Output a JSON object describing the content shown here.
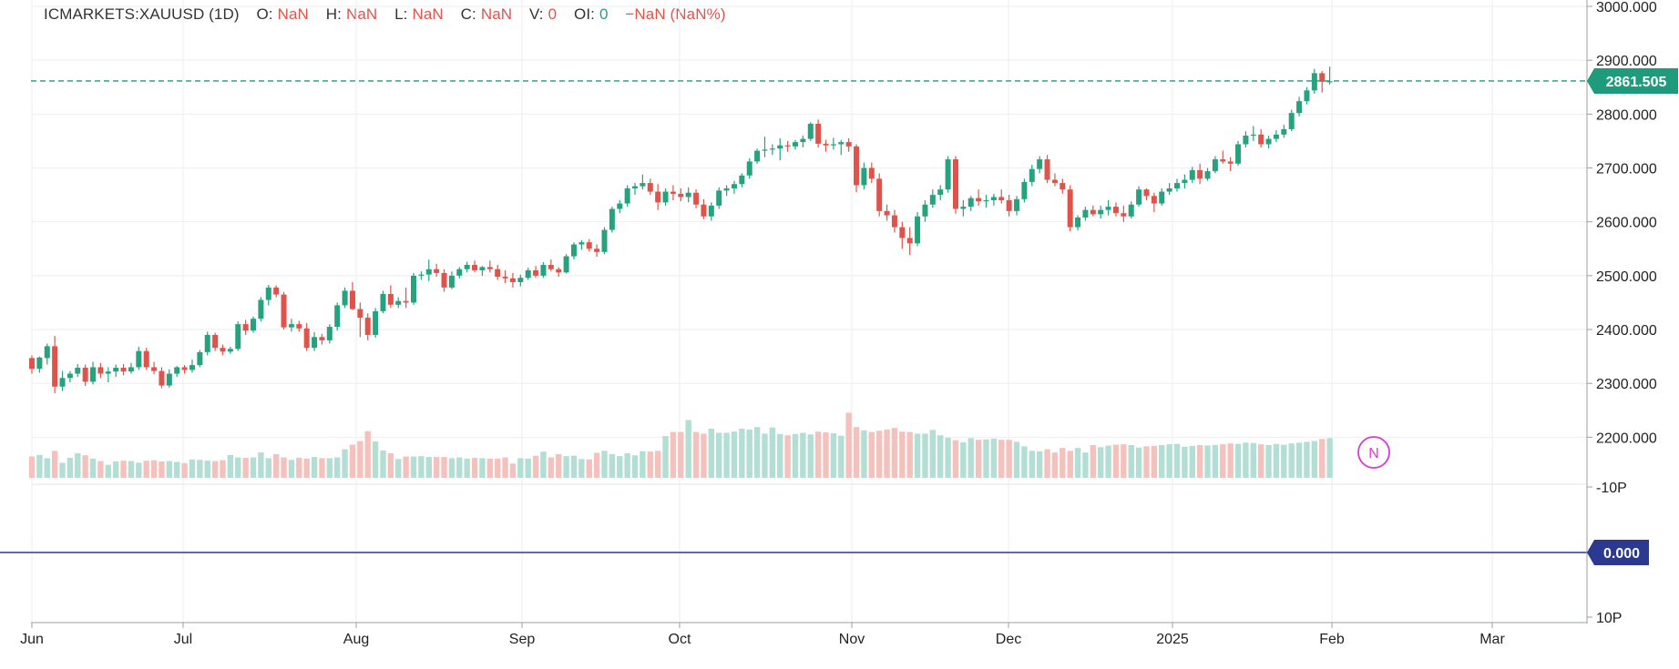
{
  "legend": {
    "symbol": "ICMARKETS:XAUUSD (1D)",
    "o_label": "O:",
    "o_value": "NaN",
    "h_label": "H:",
    "h_value": "NaN",
    "l_label": "L:",
    "l_value": "NaN",
    "c_label": "C:",
    "c_value": "NaN",
    "v_label": "V:",
    "v_value": "0",
    "oi_label": "OI:",
    "oi_value": "0",
    "change": "−NaN  (NaN%)"
  },
  "colors": {
    "up": "#26a27f",
    "down": "#e0534b",
    "up_volume": "#b3ded3",
    "down_volume": "#f5c1bd",
    "grid": "#eeeeee",
    "price_line": "#1e9a7c",
    "indicator_line": "#2b3990",
    "marker": "#d63ad6"
  },
  "chart_data": {
    "type": "candlestick",
    "title": "ICMARKETS:XAUUSD (1D)",
    "price_axis": {
      "ylim": [
        2155,
        3000
      ],
      "ticks": [
        "3000.000",
        "2900.000",
        "2800.000",
        "2700.000",
        "2600.000",
        "2500.000",
        "2400.000",
        "2300.000",
        "2200.000"
      ]
    },
    "indicator_axis": {
      "ticks": [
        "-10P",
        "10P"
      ]
    },
    "last_price": "2861.505",
    "indicator_value": "0.000",
    "marker_label": "N",
    "x_axis_ticks": [
      "Jun",
      "Jul",
      "Aug",
      "Sep",
      "Oct",
      "Nov",
      "Dec",
      "2025",
      "Feb",
      "Mar"
    ],
    "candles_ohlc": [
      [
        2347,
        2352,
        2318,
        2327
      ],
      [
        2327,
        2350,
        2320,
        2348
      ],
      [
        2347,
        2374,
        2335,
        2369
      ],
      [
        2369,
        2388,
        2282,
        2294
      ],
      [
        2294,
        2323,
        2286,
        2310
      ],
      [
        2310,
        2323,
        2302,
        2318
      ],
      [
        2318,
        2336,
        2312,
        2329
      ],
      [
        2329,
        2335,
        2295,
        2303
      ],
      [
        2303,
        2340,
        2298,
        2330
      ],
      [
        2330,
        2338,
        2310,
        2318
      ],
      [
        2318,
        2330,
        2302,
        2322
      ],
      [
        2322,
        2335,
        2312,
        2329
      ],
      [
        2329,
        2336,
        2315,
        2322
      ],
      [
        2322,
        2338,
        2318,
        2330
      ],
      [
        2330,
        2368,
        2325,
        2360
      ],
      [
        2360,
        2366,
        2325,
        2330
      ],
      [
        2330,
        2340,
        2317,
        2323
      ],
      [
        2323,
        2330,
        2291,
        2296
      ],
      [
        2296,
        2326,
        2292,
        2318
      ],
      [
        2318,
        2332,
        2312,
        2330
      ],
      [
        2330,
        2334,
        2318,
        2325
      ],
      [
        2325,
        2344,
        2320,
        2334
      ],
      [
        2334,
        2362,
        2330,
        2358
      ],
      [
        2358,
        2396,
        2352,
        2390
      ],
      [
        2390,
        2394,
        2360,
        2366
      ],
      [
        2366,
        2372,
        2352,
        2359
      ],
      [
        2359,
        2368,
        2355,
        2364
      ],
      [
        2364,
        2415,
        2360,
        2410
      ],
      [
        2410,
        2418,
        2390,
        2398
      ],
      [
        2398,
        2424,
        2394,
        2420
      ],
      [
        2420,
        2460,
        2415,
        2455
      ],
      [
        2455,
        2483,
        2445,
        2478
      ],
      [
        2478,
        2482,
        2460,
        2465
      ],
      [
        2465,
        2470,
        2400,
        2404
      ],
      [
        2404,
        2420,
        2396,
        2410
      ],
      [
        2410,
        2416,
        2396,
        2402
      ],
      [
        2402,
        2412,
        2360,
        2366
      ],
      [
        2366,
        2395,
        2360,
        2386
      ],
      [
        2386,
        2392,
        2372,
        2380
      ],
      [
        2380,
        2410,
        2374,
        2405
      ],
      [
        2405,
        2450,
        2398,
        2445
      ],
      [
        2445,
        2478,
        2440,
        2472
      ],
      [
        2472,
        2488,
        2436,
        2438
      ],
      [
        2438,
        2450,
        2386,
        2422
      ],
      [
        2422,
        2430,
        2380,
        2390
      ],
      [
        2390,
        2440,
        2385,
        2434
      ],
      [
        2434,
        2472,
        2430,
        2466
      ],
      [
        2466,
        2482,
        2440,
        2446
      ],
      [
        2446,
        2460,
        2440,
        2453
      ],
      [
        2453,
        2478,
        2440,
        2450
      ],
      [
        2450,
        2505,
        2446,
        2500
      ],
      [
        2500,
        2508,
        2492,
        2502
      ],
      [
        2502,
        2530,
        2490,
        2512
      ],
      [
        2512,
        2522,
        2498,
        2505
      ],
      [
        2505,
        2512,
        2470,
        2478
      ],
      [
        2478,
        2508,
        2475,
        2500
      ],
      [
        2500,
        2516,
        2495,
        2512
      ],
      [
        2512,
        2526,
        2506,
        2520
      ],
      [
        2520,
        2528,
        2506,
        2510
      ],
      [
        2510,
        2518,
        2500,
        2516
      ],
      [
        2516,
        2528,
        2506,
        2512
      ],
      [
        2512,
        2520,
        2492,
        2498
      ],
      [
        2498,
        2510,
        2486,
        2495
      ],
      [
        2495,
        2505,
        2478,
        2488
      ],
      [
        2488,
        2502,
        2480,
        2496
      ],
      [
        2496,
        2515,
        2492,
        2510
      ],
      [
        2510,
        2518,
        2496,
        2500
      ],
      [
        2500,
        2525,
        2496,
        2520
      ],
      [
        2520,
        2530,
        2508,
        2512
      ],
      [
        2512,
        2516,
        2498,
        2506
      ],
      [
        2506,
        2540,
        2504,
        2536
      ],
      [
        2536,
        2562,
        2530,
        2558
      ],
      [
        2558,
        2566,
        2548,
        2562
      ],
      [
        2562,
        2568,
        2545,
        2550
      ],
      [
        2550,
        2558,
        2535,
        2544
      ],
      [
        2544,
        2590,
        2540,
        2585
      ],
      [
        2585,
        2628,
        2580,
        2624
      ],
      [
        2624,
        2640,
        2616,
        2634
      ],
      [
        2634,
        2668,
        2628,
        2662
      ],
      [
        2662,
        2672,
        2650,
        2666
      ],
      [
        2666,
        2688,
        2660,
        2672
      ],
      [
        2672,
        2680,
        2650,
        2656
      ],
      [
        2656,
        2670,
        2622,
        2636
      ],
      [
        2636,
        2662,
        2630,
        2656
      ],
      [
        2656,
        2668,
        2640,
        2652
      ],
      [
        2652,
        2662,
        2638,
        2646
      ],
      [
        2646,
        2664,
        2636,
        2654
      ],
      [
        2654,
        2660,
        2625,
        2632
      ],
      [
        2632,
        2642,
        2605,
        2610
      ],
      [
        2610,
        2636,
        2602,
        2630
      ],
      [
        2630,
        2664,
        2624,
        2658
      ],
      [
        2658,
        2668,
        2648,
        2662
      ],
      [
        2662,
        2676,
        2652,
        2670
      ],
      [
        2670,
        2690,
        2664,
        2686
      ],
      [
        2686,
        2718,
        2680,
        2712
      ],
      [
        2712,
        2736,
        2708,
        2732
      ],
      [
        2732,
        2758,
        2720,
        2734
      ],
      [
        2734,
        2744,
        2724,
        2736
      ],
      [
        2736,
        2755,
        2714,
        2742
      ],
      [
        2742,
        2750,
        2730,
        2740
      ],
      [
        2740,
        2752,
        2734,
        2748
      ],
      [
        2748,
        2760,
        2738,
        2754
      ],
      [
        2754,
        2785,
        2750,
        2782
      ],
      [
        2782,
        2790,
        2738,
        2745
      ],
      [
        2745,
        2752,
        2730,
        2742
      ],
      [
        2742,
        2756,
        2734,
        2744
      ],
      [
        2744,
        2752,
        2724,
        2748
      ],
      [
        2748,
        2755,
        2730,
        2740
      ],
      [
        2740,
        2744,
        2655,
        2668
      ],
      [
        2668,
        2710,
        2660,
        2700
      ],
      [
        2700,
        2710,
        2672,
        2680
      ],
      [
        2680,
        2690,
        2610,
        2620
      ],
      [
        2620,
        2632,
        2602,
        2612
      ],
      [
        2612,
        2622,
        2580,
        2590
      ],
      [
        2590,
        2600,
        2550,
        2570
      ],
      [
        2570,
        2590,
        2538,
        2560
      ],
      [
        2560,
        2618,
        2555,
        2610
      ],
      [
        2610,
        2640,
        2600,
        2632
      ],
      [
        2632,
        2660,
        2626,
        2650
      ],
      [
        2650,
        2668,
        2640,
        2660
      ],
      [
        2660,
        2722,
        2654,
        2716
      ],
      [
        2716,
        2722,
        2615,
        2624
      ],
      [
        2624,
        2640,
        2610,
        2628
      ],
      [
        2628,
        2648,
        2620,
        2644
      ],
      [
        2644,
        2660,
        2630,
        2638
      ],
      [
        2638,
        2650,
        2626,
        2640
      ],
      [
        2640,
        2652,
        2630,
        2646
      ],
      [
        2646,
        2660,
        2634,
        2640
      ],
      [
        2640,
        2650,
        2610,
        2620
      ],
      [
        2620,
        2648,
        2612,
        2642
      ],
      [
        2642,
        2680,
        2636,
        2674
      ],
      [
        2674,
        2706,
        2666,
        2698
      ],
      [
        2698,
        2722,
        2690,
        2716
      ],
      [
        2716,
        2724,
        2672,
        2678
      ],
      [
        2678,
        2690,
        2666,
        2672
      ],
      [
        2672,
        2680,
        2652,
        2660
      ],
      [
        2660,
        2668,
        2582,
        2590
      ],
      [
        2590,
        2612,
        2584,
        2608
      ],
      [
        2608,
        2628,
        2602,
        2622
      ],
      [
        2622,
        2630,
        2610,
        2614
      ],
      [
        2614,
        2630,
        2606,
        2622
      ],
      [
        2622,
        2640,
        2612,
        2628
      ],
      [
        2628,
        2636,
        2610,
        2616
      ],
      [
        2616,
        2630,
        2600,
        2610
      ],
      [
        2610,
        2638,
        2606,
        2632
      ],
      [
        2632,
        2666,
        2628,
        2660
      ],
      [
        2660,
        2662,
        2640,
        2648
      ],
      [
        2648,
        2654,
        2618,
        2634
      ],
      [
        2634,
        2662,
        2630,
        2656
      ],
      [
        2656,
        2672,
        2650,
        2662
      ],
      [
        2662,
        2680,
        2656,
        2672
      ],
      [
        2672,
        2688,
        2662,
        2678
      ],
      [
        2678,
        2702,
        2672,
        2696
      ],
      [
        2696,
        2708,
        2670,
        2680
      ],
      [
        2680,
        2700,
        2676,
        2694
      ],
      [
        2694,
        2722,
        2690,
        2716
      ],
      [
        2716,
        2732,
        2708,
        2712
      ],
      [
        2712,
        2720,
        2694,
        2708
      ],
      [
        2708,
        2750,
        2704,
        2744
      ],
      [
        2744,
        2768,
        2738,
        2760
      ],
      [
        2760,
        2778,
        2750,
        2762
      ],
      [
        2762,
        2772,
        2738,
        2744
      ],
      [
        2744,
        2760,
        2736,
        2754
      ],
      [
        2754,
        2770,
        2748,
        2762
      ],
      [
        2762,
        2780,
        2756,
        2772
      ],
      [
        2772,
        2808,
        2768,
        2802
      ],
      [
        2802,
        2832,
        2796,
        2824
      ],
      [
        2824,
        2850,
        2818,
        2844
      ],
      [
        2844,
        2884,
        2838,
        2876
      ],
      [
        2876,
        2880,
        2840,
        2860
      ],
      [
        2860,
        2888,
        2855,
        2861
      ]
    ],
    "volume_relative": [
      0.52,
      0.56,
      0.48,
      0.66,
      0.37,
      0.49,
      0.6,
      0.55,
      0.47,
      0.41,
      0.32,
      0.4,
      0.42,
      0.41,
      0.37,
      0.42,
      0.43,
      0.4,
      0.41,
      0.39,
      0.36,
      0.45,
      0.44,
      0.42,
      0.41,
      0.43,
      0.56,
      0.5,
      0.49,
      0.5,
      0.62,
      0.48,
      0.58,
      0.5,
      0.44,
      0.49,
      0.47,
      0.51,
      0.48,
      0.48,
      0.5,
      0.7,
      0.81,
      0.9,
      1.14,
      0.89,
      0.67,
      0.6,
      0.46,
      0.52,
      0.52,
      0.53,
      0.51,
      0.51,
      0.51,
      0.48,
      0.5,
      0.47,
      0.49,
      0.48,
      0.47,
      0.47,
      0.5,
      0.35,
      0.48,
      0.47,
      0.54,
      0.64,
      0.5,
      0.58,
      0.53,
      0.54,
      0.46,
      0.45,
      0.61,
      0.66,
      0.58,
      0.53,
      0.6,
      0.55,
      0.65,
      0.64,
      0.66,
      1.02,
      1.12,
      1.12,
      1.41,
      1.12,
      1.08,
      1.2,
      1.1,
      1.1,
      1.13,
      1.2,
      1.18,
      1.24,
      1.08,
      1.23,
      1.07,
      1.04,
      1.07,
      1.1,
      1.06,
      1.13,
      1.11,
      1.09,
      1.03,
      1.59,
      1.24,
      1.16,
      1.12,
      1.15,
      1.18,
      1.22,
      1.13,
      1.12,
      1.08,
      1.08,
      1.17,
      1.04,
      0.98,
      0.92,
      0.87,
      0.97,
      0.93,
      0.94,
      0.96,
      0.93,
      0.93,
      0.88,
      0.77,
      0.66,
      0.65,
      0.7,
      0.62,
      0.73,
      0.66,
      0.73,
      0.62,
      0.8,
      0.75,
      0.79,
      0.81,
      0.82,
      0.8,
      0.74,
      0.77,
      0.78,
      0.8,
      0.82,
      0.83,
      0.76,
      0.78,
      0.8,
      0.79,
      0.8,
      0.82,
      0.84,
      0.83,
      0.86,
      0.85,
      0.82,
      0.8,
      0.83,
      0.81,
      0.84,
      0.86,
      0.88,
      0.9,
      0.95,
      0.97
    ]
  }
}
